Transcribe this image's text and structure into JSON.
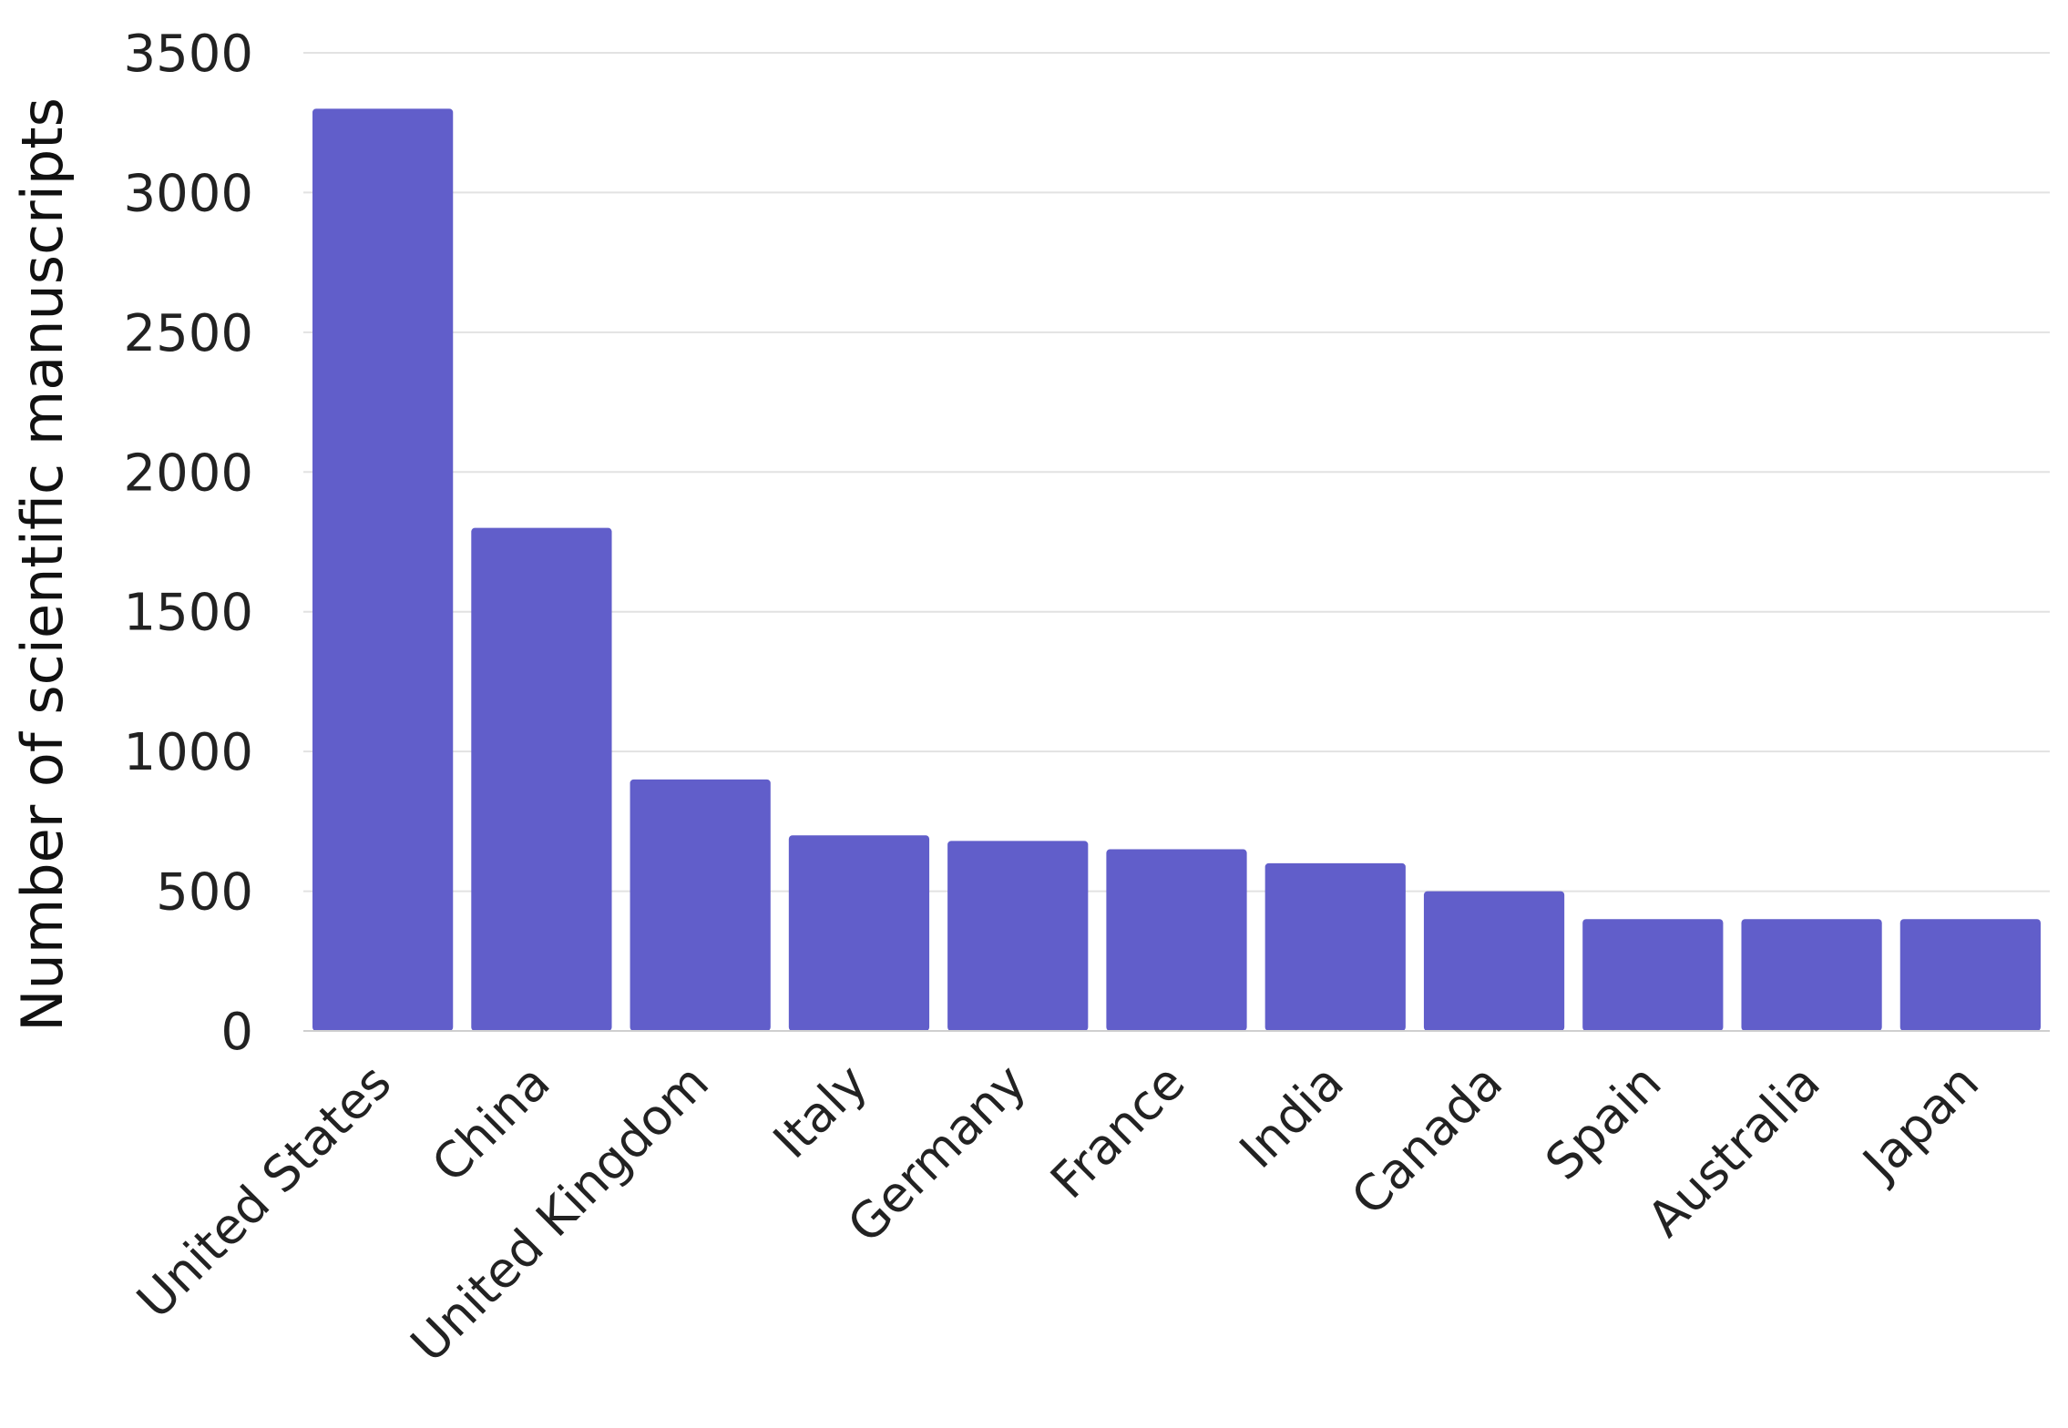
{
  "chart_data": {
    "type": "bar",
    "title": "",
    "xlabel": "",
    "ylabel": "Number of scientific manuscripts",
    "categories": [
      "United States",
      "China",
      "United Kingdom",
      "Italy",
      "Germany",
      "France",
      "India",
      "Canada",
      "Spain",
      "Australia",
      "Japan"
    ],
    "values": [
      3300,
      1800,
      900,
      700,
      680,
      650,
      600,
      500,
      400,
      400,
      400
    ],
    "ylim": [
      0,
      3500
    ],
    "yticks": [
      0,
      500,
      1000,
      1500,
      2000,
      2500,
      3000,
      3500
    ],
    "grid": true,
    "legend": "none",
    "colors": {
      "bar": "#615ECA",
      "grid": "#E2E2E2",
      "baseline": "#CFCFCF"
    }
  }
}
